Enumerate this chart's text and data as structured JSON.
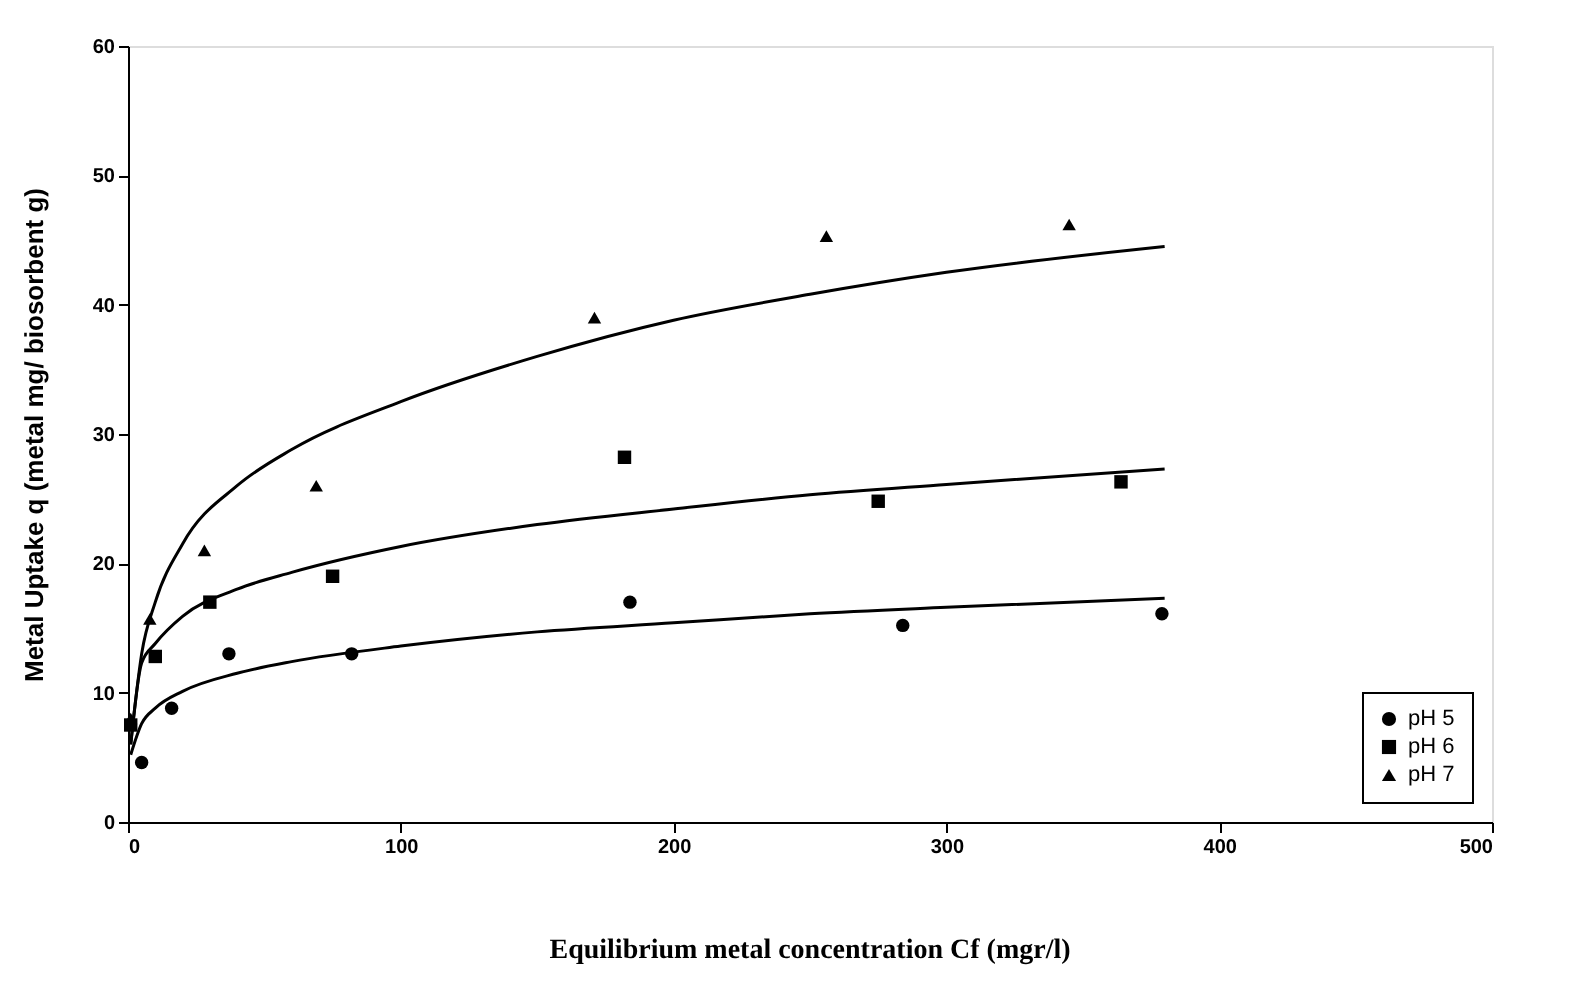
{
  "chart_data": {
    "type": "scatter",
    "xlabel": "Equilibrium metal concentration Cf (mgr/l)",
    "ylabel": "Metal Uptake   q   (metal mg/ biosorbent g)",
    "xlim": [
      0,
      500
    ],
    "xticks": [
      0,
      100,
      200,
      300,
      400,
      500
    ],
    "ylim": [
      0,
      60
    ],
    "yticks": [
      0,
      10,
      20,
      30,
      40,
      50,
      60
    ],
    "grid": false,
    "legend": "bottom right",
    "series": [
      {
        "name": "pH 5",
        "marker": "circle",
        "color": "#000000",
        "x": [
          5,
          16,
          37,
          82,
          184,
          284,
          379
        ],
        "values": [
          4.6,
          8.8,
          13,
          13,
          17,
          15.2,
          16.1
        ]
      },
      {
        "name": "pH 6",
        "marker": "square",
        "color": "#000000",
        "x": [
          1,
          10,
          30,
          75,
          182,
          275,
          364
        ],
        "values": [
          7.5,
          12.8,
          17,
          19,
          28.2,
          24.8,
          26.3
        ]
      },
      {
        "name": "pH 7",
        "marker": "triangle",
        "color": "#000000",
        "x": [
          1,
          8,
          28,
          69,
          171,
          256,
          345
        ],
        "values": [
          8,
          15.7,
          21,
          26,
          39,
          45.3,
          46.2
        ]
      },
      {
        "type": "line",
        "color": "#000000",
        "x": [
          1,
          5,
          10,
          20,
          40,
          60,
          100,
          150,
          200,
          250,
          300,
          380
        ],
        "values": [
          5.2,
          7.6,
          8.8,
          10.1,
          11.5,
          12.4,
          13.6,
          14.7,
          15.4,
          16.1,
          16.6,
          17.3
        ]
      },
      {
        "type": "line",
        "color": "#000000",
        "x": [
          1,
          5,
          10,
          20,
          40,
          60,
          100,
          150,
          200,
          250,
          300,
          380
        ],
        "values": [
          6,
          12.3,
          13.8,
          15.9,
          18,
          19.3,
          21.3,
          23,
          24.2,
          25.3,
          26.1,
          27.3
        ]
      },
      {
        "type": "line",
        "color": "#000000",
        "x": [
          1,
          5,
          10,
          20,
          40,
          60,
          100,
          150,
          200,
          250,
          300,
          380
        ],
        "values": [
          6,
          13,
          17,
          21.5,
          26,
          28.8,
          32.5,
          36,
          38.8,
          40.8,
          42.5,
          44.5
        ]
      }
    ]
  }
}
